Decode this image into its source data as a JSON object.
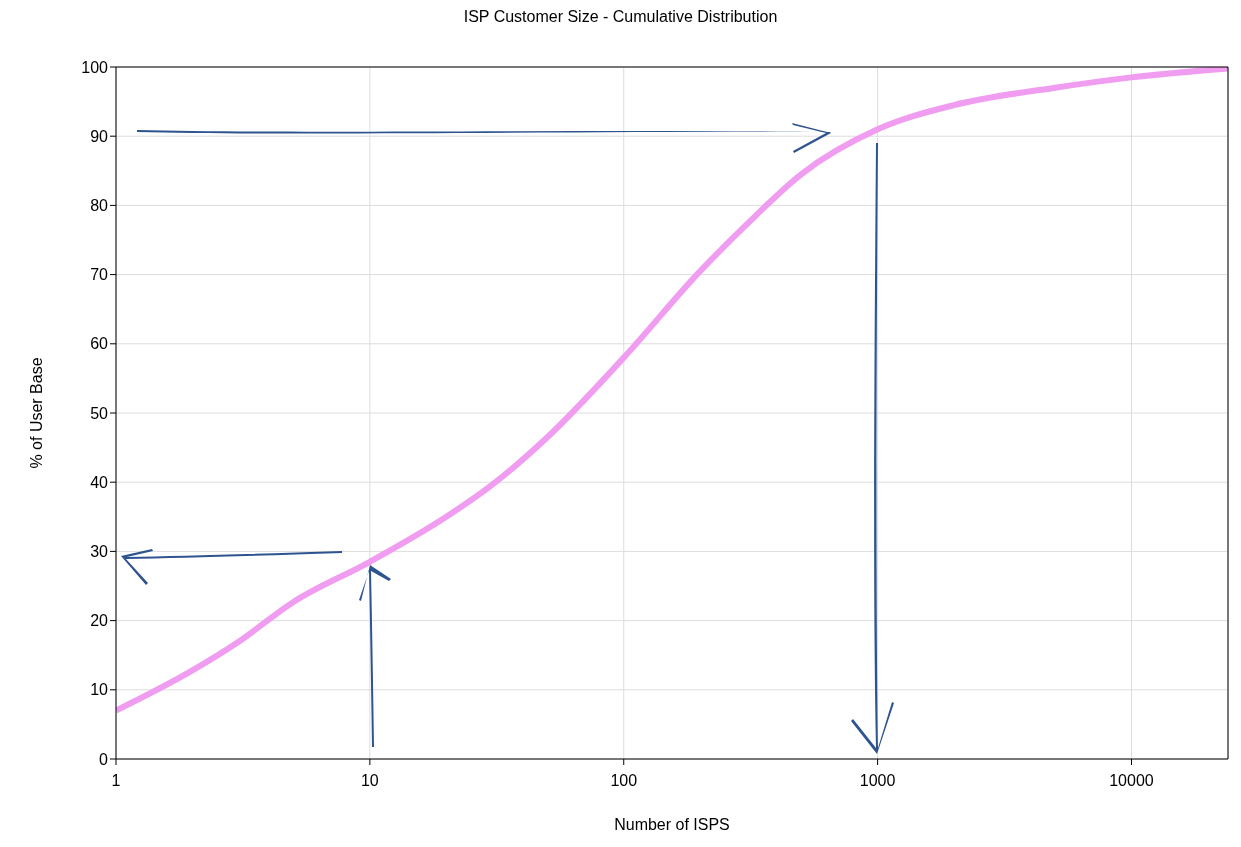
{
  "chart_data": {
    "type": "line",
    "title": "ISP Customer Size - Cumulative Distribution",
    "xlabel": "Number of ISPS",
    "ylabel": "% of User Base",
    "log": "x",
    "grid": true,
    "legend": false,
    "marker": "none",
    "line_style": "solid",
    "x": [
      1,
      2,
      3,
      5,
      10,
      20,
      30,
      50,
      100,
      200,
      300,
      500,
      1000,
      2000,
      5000,
      10000,
      24000
    ],
    "series": [
      {
        "color": "#f09cf0",
        "values": [
          7,
          12.8,
          16.8,
          22.7,
          28.5,
          35,
          39.5,
          46.5,
          58,
          70.5,
          77,
          84.5,
          91,
          94.5,
          97,
          98.5,
          99.8
        ]
      }
    ],
    "xlim": [
      1,
      24000
    ],
    "xticks": [
      1,
      10,
      100,
      1000,
      10000
    ],
    "ylim": [
      0,
      100
    ],
    "yticks": [
      0,
      10,
      20,
      30,
      40,
      50,
      60,
      70,
      80,
      90,
      100
    ]
  }
}
